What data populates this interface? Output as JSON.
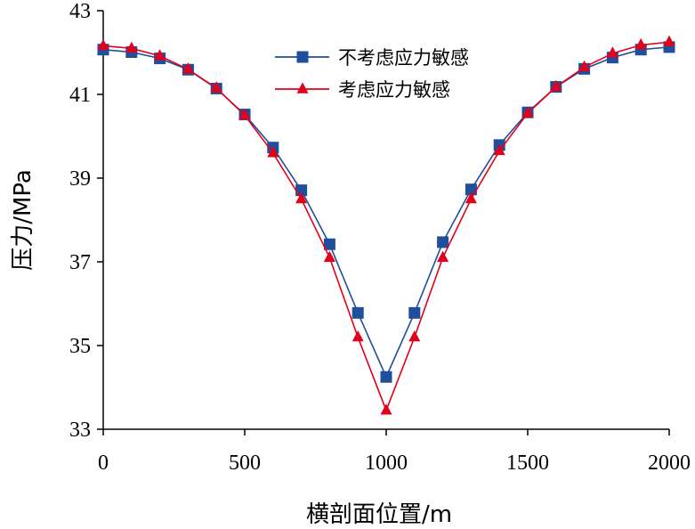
{
  "chart_data": {
    "type": "line",
    "xlabel": "横剖面位置/m",
    "ylabel": "压力/MPa",
    "xlim": [
      0,
      2000
    ],
    "ylim": [
      33,
      43
    ],
    "xticks": [
      0,
      500,
      1000,
      1500,
      2000
    ],
    "yticks": [
      33,
      35,
      37,
      39,
      41,
      43
    ],
    "grid": false,
    "legend_position": "top-center",
    "x": [
      0,
      100,
      200,
      300,
      400,
      500,
      600,
      700,
      800,
      900,
      1000,
      1100,
      1200,
      1300,
      1400,
      1500,
      1600,
      1700,
      1800,
      1900,
      2000
    ],
    "series": [
      {
        "name": "不考虑应力敏感",
        "color": "#1f4e9c",
        "marker": "square",
        "values": [
          42.07,
          42.01,
          41.86,
          41.59,
          41.14,
          40.52,
          39.73,
          38.71,
          37.42,
          35.78,
          34.25,
          35.78,
          37.47,
          38.73,
          39.79,
          40.57,
          41.18,
          41.61,
          41.88,
          42.07,
          42.13
        ]
      },
      {
        "name": "考虑应力敏感",
        "color": "#e3001b",
        "marker": "triangle",
        "values": [
          42.16,
          42.1,
          41.92,
          41.6,
          41.15,
          40.5,
          39.6,
          38.5,
          37.1,
          35.2,
          33.45,
          35.2,
          37.1,
          38.5,
          39.65,
          40.55,
          41.18,
          41.65,
          41.98,
          42.18,
          42.25
        ]
      }
    ]
  }
}
